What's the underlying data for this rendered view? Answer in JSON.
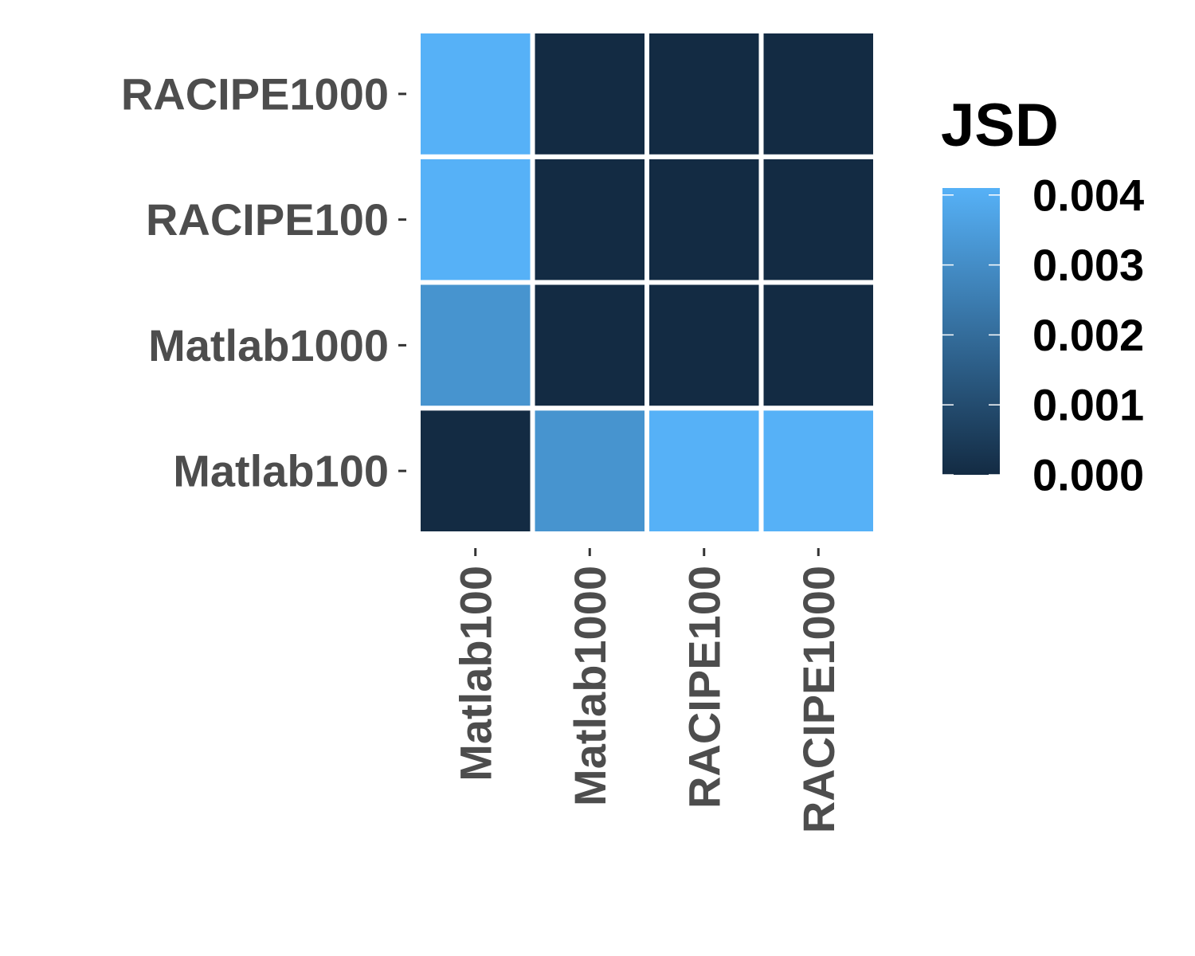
{
  "chart_data": {
    "type": "heatmap",
    "x_categories": [
      "Matlab100",
      "Matlab1000",
      "RACIPE100",
      "RACIPE1000"
    ],
    "y_categories": [
      "Matlab100",
      "Matlab1000",
      "RACIPE100",
      "RACIPE1000"
    ],
    "values": [
      [
        0.0,
        0.0032,
        0.0041,
        0.0041
      ],
      [
        0.0032,
        0.0,
        0.0,
        0.0
      ],
      [
        0.0041,
        0.0,
        0.0,
        0.0
      ],
      [
        0.0041,
        0.0,
        0.0,
        0.0
      ]
    ],
    "xlabel": "",
    "ylabel": "",
    "legend": {
      "title": "JSD",
      "ticks": [
        0.0,
        0.001,
        0.002,
        0.003,
        0.004
      ],
      "tick_labels": [
        "0.000",
        "0.001",
        "0.002",
        "0.003",
        "0.004"
      ],
      "min": 0.0,
      "max": 0.0041,
      "low_color": "#132B43",
      "high_color": "#56B1F7",
      "placement": "right"
    },
    "grid": false
  }
}
